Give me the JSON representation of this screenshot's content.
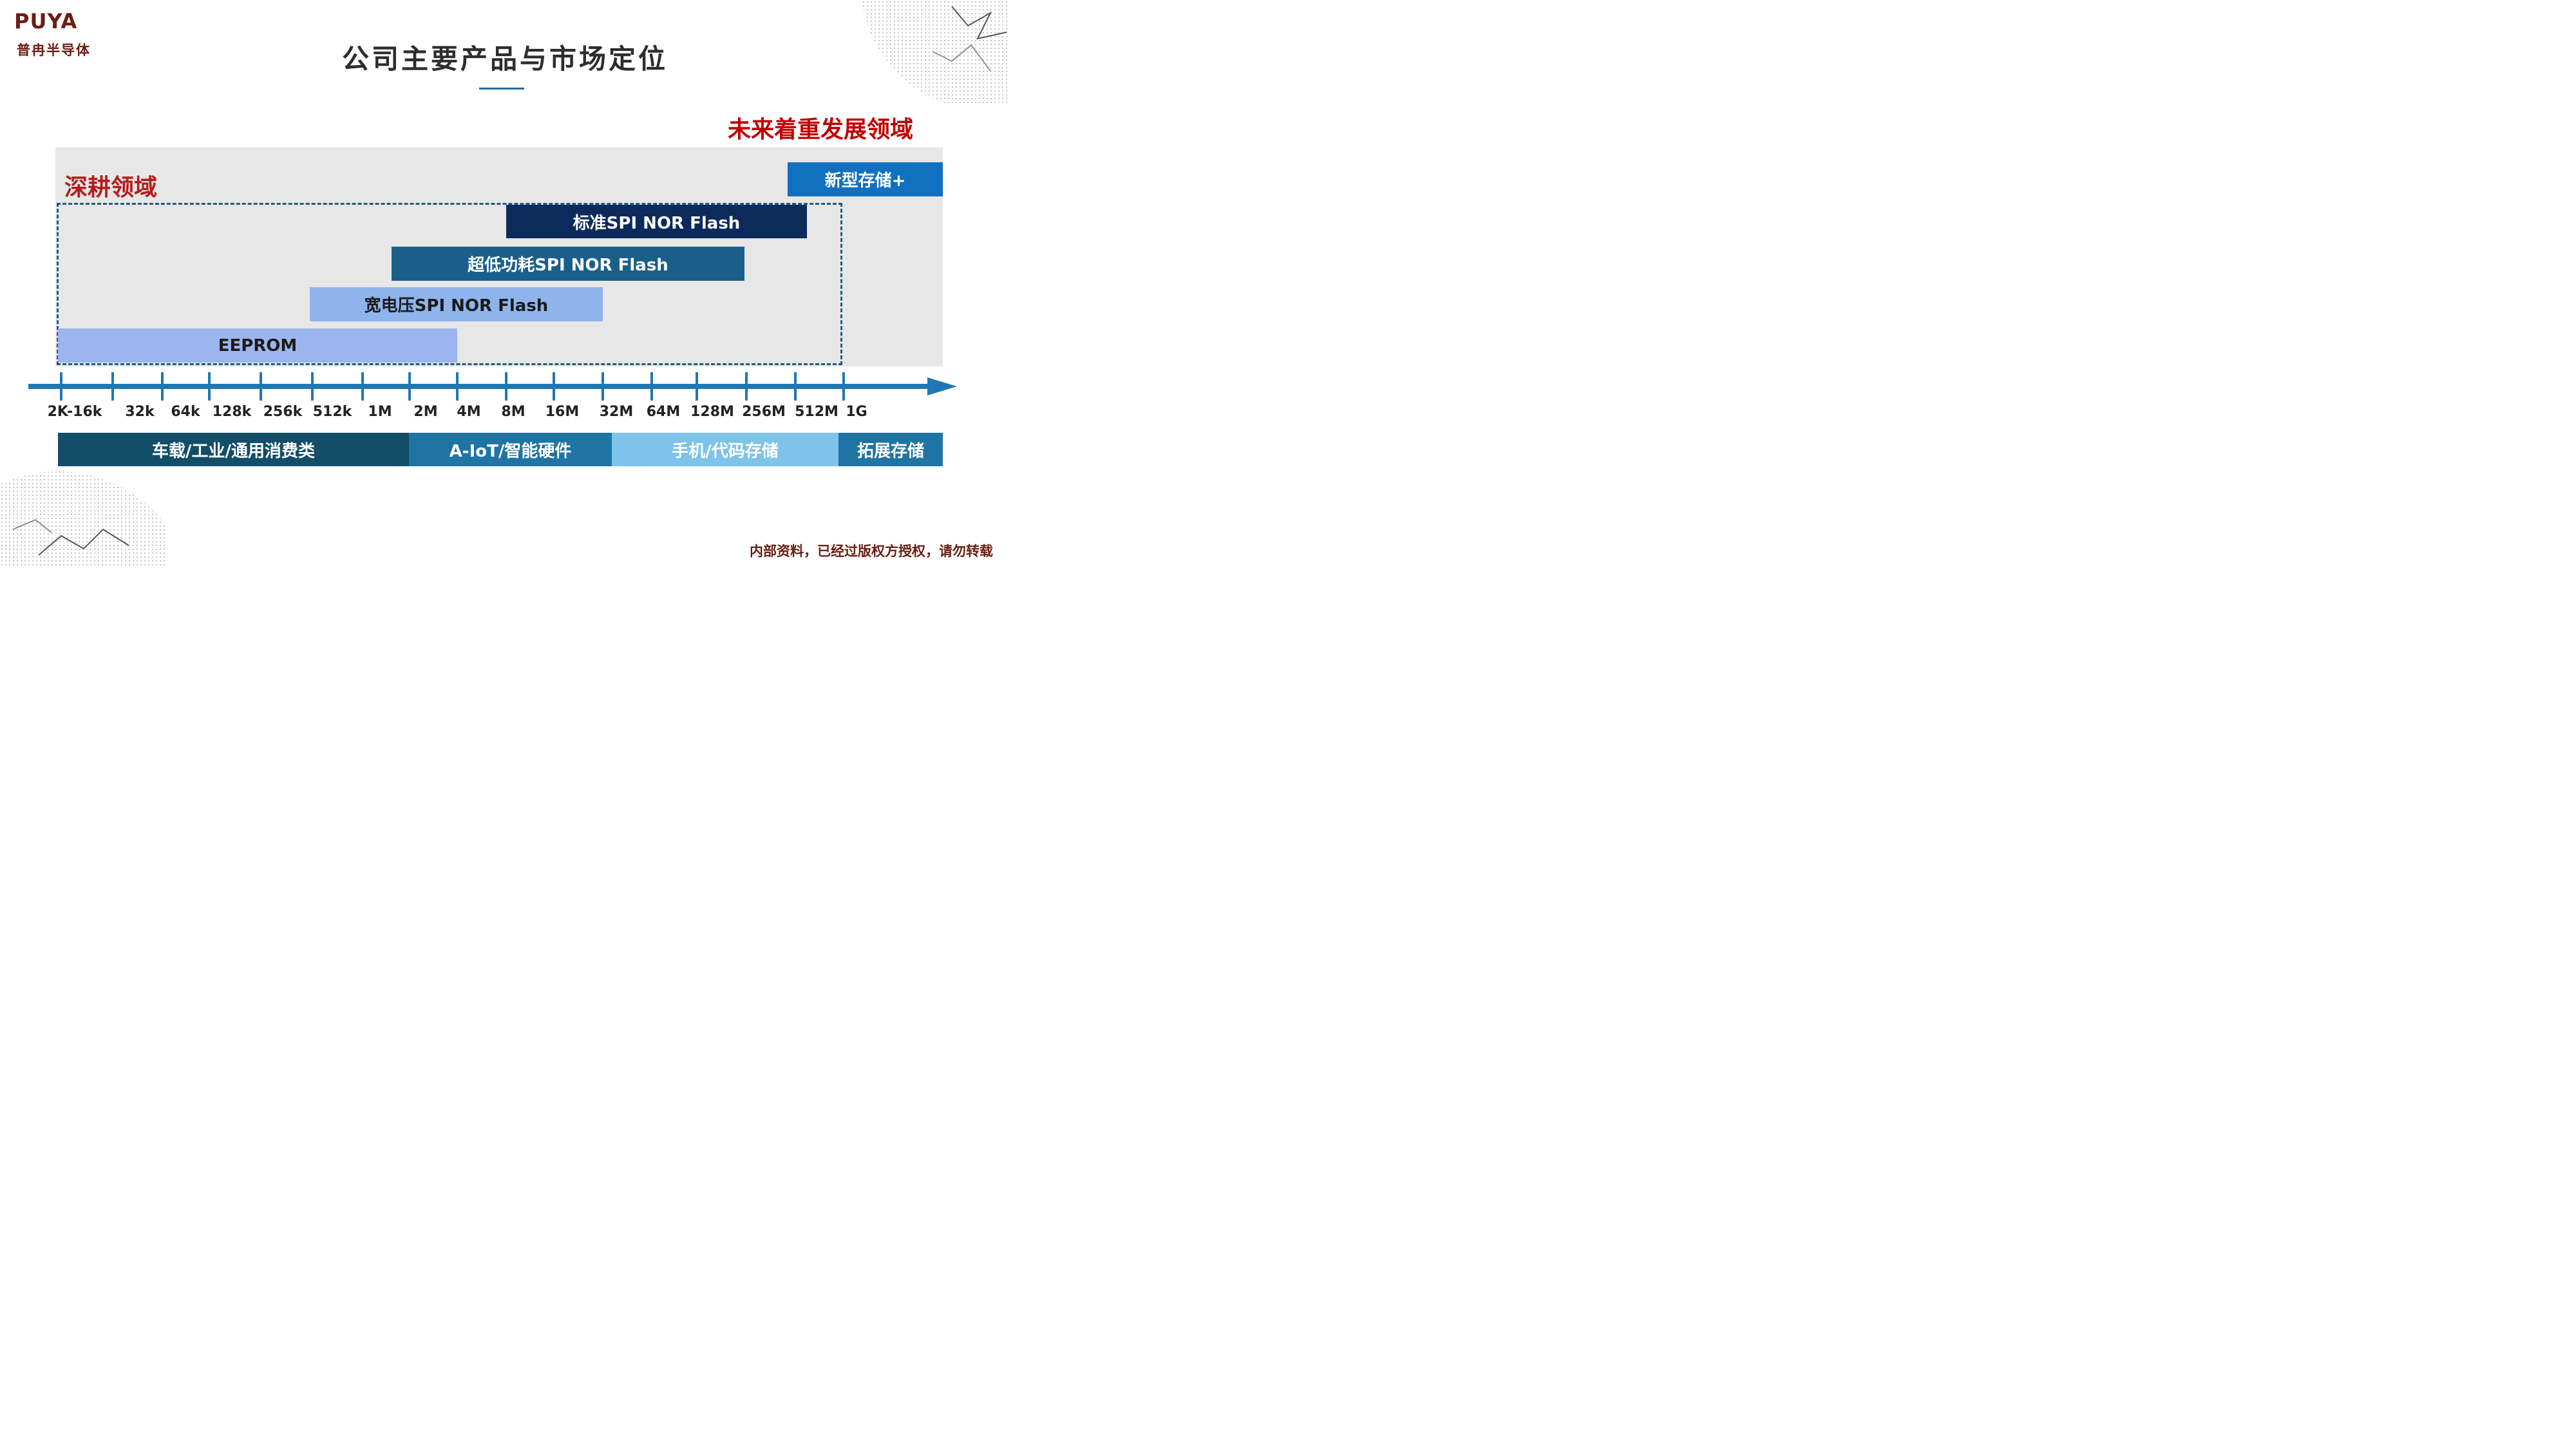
{
  "logo": {
    "wordmark": "PUYA",
    "chinese_name": "普冉半导体"
  },
  "title": "公司主要产品与市场定位",
  "future_area_label": "未来着重发展领域",
  "core_area_label": "深耕领域",
  "colors": {
    "title_accent": "#1f6aa6",
    "red_label": "#c00000",
    "axis": "#1f78b4",
    "bar_standard": "#0d2a5c",
    "bar_ultra_low_power": "#1a5f8a",
    "bar_wide_voltage": "#8fb4ec",
    "bar_eeprom": "#9db5ee",
    "bar_new_storage": "#1270c0",
    "seg_1": "#124e68",
    "seg_2": "#1f74a4",
    "seg_3": "#7dc3ea",
    "seg_4": "#1f74a4",
    "footer": "#6b1e14"
  },
  "products": [
    {
      "label": "新型存储+",
      "from": "512M",
      "to": "beyond 1G"
    },
    {
      "label": "标准SPI NOR Flash",
      "from": "8M",
      "to": "512M"
    },
    {
      "label": "超低功耗SPI NOR Flash",
      "from": "2M",
      "to": "256M"
    },
    {
      "label": "宽电压SPI NOR Flash",
      "from": "512k",
      "to": "32M"
    },
    {
      "label": "EEPROM",
      "from": "2K",
      "to": "4M"
    }
  ],
  "axis_ticks": [
    "2K-16k",
    "32k",
    "64k",
    "128k",
    "256k",
    "512k",
    "1M",
    "2M",
    "4M",
    "8M",
    "16M",
    "32M",
    "64M",
    "128M",
    "256M",
    "512M",
    "1G"
  ],
  "market_segments": [
    {
      "label": "车载/工业/通用消费类"
    },
    {
      "label": "A-IoT/智能硬件"
    },
    {
      "label": "手机/代码存储"
    },
    {
      "label": "拓展存储"
    }
  ],
  "footer_note": "内部资料，已经过版权方授权，请勿转载"
}
